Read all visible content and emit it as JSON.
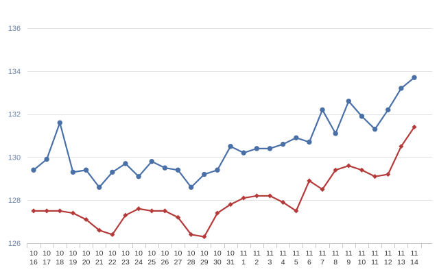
{
  "chart_data": {
    "type": "line",
    "title": "",
    "xlabel": "",
    "ylabel": "",
    "ylim": [
      126,
      136
    ],
    "yticks": [
      126,
      128,
      130,
      132,
      134,
      136
    ],
    "grid": true,
    "legend": "none",
    "categories": [
      [
        "10",
        "16"
      ],
      [
        "10",
        "17"
      ],
      [
        "10",
        "18"
      ],
      [
        "10",
        "19"
      ],
      [
        "10",
        "20"
      ],
      [
        "10",
        "21"
      ],
      [
        "10",
        "22"
      ],
      [
        "10",
        "23"
      ],
      [
        "10",
        "24"
      ],
      [
        "10",
        "25"
      ],
      [
        "10",
        "26"
      ],
      [
        "10",
        "27"
      ],
      [
        "10",
        "28"
      ],
      [
        "10",
        "29"
      ],
      [
        "10",
        "30"
      ],
      [
        "10",
        "31"
      ],
      [
        "11",
        "1"
      ],
      [
        "11",
        "2"
      ],
      [
        "11",
        "3"
      ],
      [
        "11",
        "4"
      ],
      [
        "11",
        "5"
      ],
      [
        "11",
        "6"
      ],
      [
        "11",
        "7"
      ],
      [
        "11",
        "8"
      ],
      [
        "11",
        "9"
      ],
      [
        "11",
        "10"
      ],
      [
        "11",
        "11"
      ],
      [
        "11",
        "12"
      ],
      [
        "11",
        "13"
      ],
      [
        "11",
        "14"
      ]
    ],
    "series": [
      {
        "color": "#4a70a8",
        "marker": "circle",
        "values": [
          129.4,
          129.9,
          131.6,
          129.3,
          129.4,
          128.6,
          129.3,
          129.7,
          129.1,
          129.8,
          129.5,
          129.4,
          128.6,
          129.2,
          129.4,
          130.5,
          130.2,
          130.4,
          130.4,
          130.6,
          130.9,
          130.7,
          132.2,
          131.1,
          132.6,
          131.9,
          131.3,
          132.2,
          133.2,
          133.7
        ]
      },
      {
        "color": "#b43a3a",
        "marker": "diamond",
        "values": [
          127.5,
          127.5,
          127.5,
          127.4,
          127.1,
          126.6,
          126.4,
          127.3,
          127.6,
          127.5,
          127.5,
          127.2,
          126.4,
          126.3,
          127.4,
          127.8,
          128.1,
          128.2,
          128.2,
          127.9,
          127.5,
          128.9,
          128.5,
          129.4,
          129.6,
          129.4,
          129.1,
          129.2,
          130.5,
          131.4
        ]
      }
    ]
  }
}
